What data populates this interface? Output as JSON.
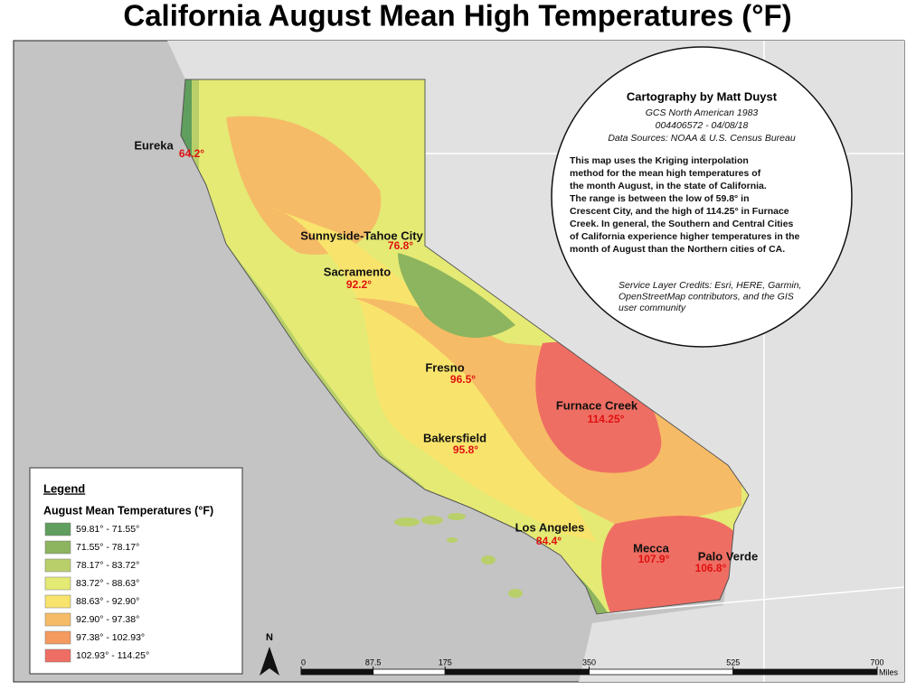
{
  "title": "California August Mean High Temperatures (°F)",
  "cities": [
    {
      "name": "Eureka",
      "temp": "64.2°"
    },
    {
      "name": "Sunnyside-Tahoe City",
      "temp": "76.8°"
    },
    {
      "name": "Sacramento",
      "temp": "92.2°"
    },
    {
      "name": "Fresno",
      "temp": "96.5°"
    },
    {
      "name": "Furnace Creek",
      "temp": "114.25°"
    },
    {
      "name": "Bakersfield",
      "temp": "95.8°"
    },
    {
      "name": "Los Angeles",
      "temp": "84.4°"
    },
    {
      "name": "Mecca",
      "temp": "107.9°"
    },
    {
      "name": "Palo Verde",
      "temp": "106.8°"
    }
  ],
  "info": {
    "heading": "Cartography by Matt Duyst",
    "meta": [
      "GCS North American 1983",
      "004406572 - 04/08/18",
      "Data Sources: NOAA & U.S. Census Bureau"
    ],
    "body": [
      "This map uses the Kriging interpolation",
      "method for the mean high temperatures of",
      "the month August, in the state of California.",
      "The range is between the low of 59.8° in",
      "Crescent City, and the high of 114.25° in Furnace",
      "Creek. In general, the Southern and Central Cities",
      "of California experience higher temperatures in the",
      "month of August than the Northern cities of CA."
    ],
    "credits": [
      "Service Layer Credits: Esri, HERE, Garmin,",
      "OpenStreetMap contributors, and the GIS",
      "user community"
    ]
  },
  "legend": {
    "title": "Legend",
    "subtitle": "August Mean Temperatures (°F)",
    "classes": [
      {
        "label": "59.81° - 71.55°",
        "color": "#5f9e5c"
      },
      {
        "label": "71.55° - 78.17°",
        "color": "#8db45e"
      },
      {
        "label": "78.17° - 83.72°",
        "color": "#b9d06a"
      },
      {
        "label": "83.72° - 88.63°",
        "color": "#e4ea74"
      },
      {
        "label": "88.63° - 92.90°",
        "color": "#f8e46c"
      },
      {
        "label": "92.90° - 97.38°",
        "color": "#f6bb66"
      },
      {
        "label": "97.38° - 102.93°",
        "color": "#f49a5f"
      },
      {
        "label": "102.93° - 114.25°",
        "color": "#ef6e63"
      }
    ]
  },
  "north": "N",
  "scale": {
    "ticks": [
      0,
      87.5,
      175,
      350,
      525,
      700
    ],
    "unit": "Miles"
  }
}
